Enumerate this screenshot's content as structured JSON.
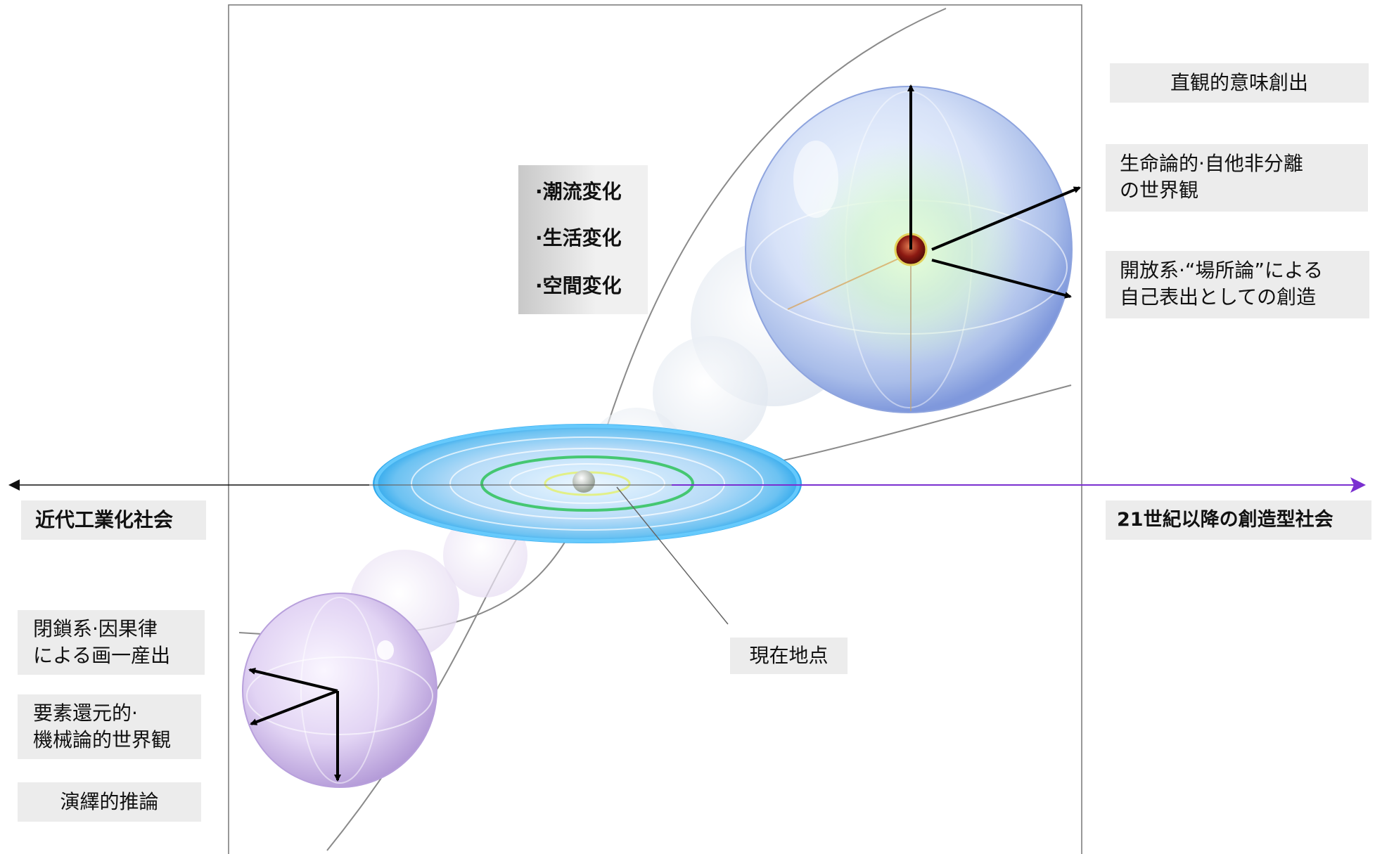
{
  "left_labels": {
    "society": "近代工業化社会",
    "production": [
      "閉鎖系·因果律",
      "による画一産出"
    ],
    "worldview": [
      "要素還元的·",
      "機械論的世界観"
    ],
    "reasoning": "演繹的推論"
  },
  "right_labels": {
    "society": "21世紀以降の創造型社会",
    "meaning": "直観的意味創出",
    "worldview": [
      "生命論的·自他非分離",
      "の世界観"
    ],
    "creation": [
      "開放系·“場所論”による",
      "自己表出としての創造"
    ]
  },
  "center_labels": {
    "changes": [
      "·潮流変化",
      "·生活変化",
      "·空間変化"
    ],
    "current_point": "現在地点"
  },
  "colors": {
    "arrow_right": "#7a2fd0",
    "arrow_left": "#111111",
    "disk": "#4fb4f0",
    "sphere_future": "#9fb3ea",
    "sphere_past": "#c7b2e6",
    "label_bg": "#ececec"
  }
}
